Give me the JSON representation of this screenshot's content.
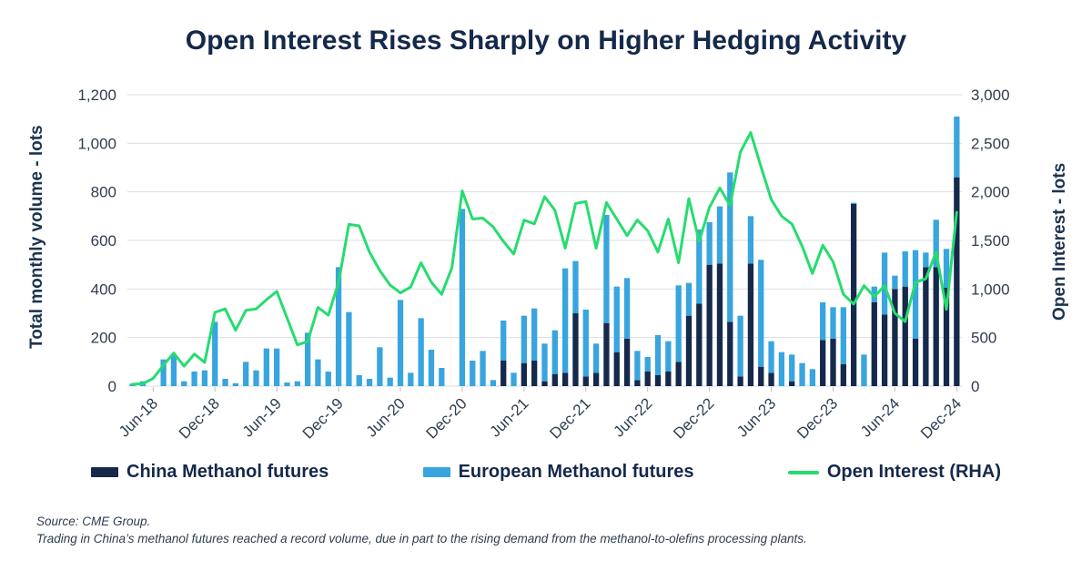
{
  "title": "Open Interest Rises Sharply on Higher Hedging Activity",
  "y_left": {
    "label": "Total monthly volume - lots",
    "ticks": [
      "0",
      "200",
      "400",
      "600",
      "800",
      "1,000",
      "1,200"
    ]
  },
  "y_right": {
    "label": "Open Interest - lots",
    "ticks": [
      "0",
      "500",
      "1,000",
      "1,500",
      "2,000",
      "2,500",
      "3,000"
    ]
  },
  "legend": {
    "items": [
      {
        "label": "China Methanol futures",
        "type": "rect",
        "color": "#15294b"
      },
      {
        "label": "European Methanol futures",
        "type": "rect",
        "color": "#38a5df"
      },
      {
        "label": "Open Interest (RHA)",
        "type": "line",
        "color": "#26dc6f"
      }
    ]
  },
  "footer": {
    "source": "Source: CME Group.",
    "note": "Trading in China’s methanol futures reached a record volume, due in part to the rising demand from the methanol-to-olefins processing plants."
  },
  "colors": {
    "grid": "#dadee4",
    "axis_text": "#2d3e50",
    "tick_mark": "#b8bfc9"
  },
  "chart_data": {
    "type": "bar",
    "subtype": "stacked bars with secondary-axis line",
    "n_months": 81,
    "start": "Apr-2018",
    "end": "Dec-2024",
    "x_tick_indices": [
      2,
      8,
      14,
      20,
      26,
      32,
      38,
      44,
      50,
      56,
      62,
      68,
      74,
      80
    ],
    "x_tick_labels": [
      "Jun-18",
      "Dec-18",
      "Jun-19",
      "Dec-19",
      "Jun-20",
      "Dec-20",
      "Jun-21",
      "Dec-21",
      "Jun-22",
      "Dec-22",
      "Jun-23",
      "Dec-23",
      "Jun-24",
      "Dec-24"
    ],
    "ylim_left": [
      0,
      1200
    ],
    "ylim_right": [
      0,
      3000
    ],
    "grid": "horizontal",
    "legend_position": "bottom",
    "series": [
      {
        "name": "China Methanol futures",
        "axis": "left",
        "render": "bar-stack-bottom",
        "color": "#15294b",
        "values": [
          0,
          0,
          0,
          0,
          0,
          0,
          0,
          0,
          0,
          0,
          0,
          0,
          0,
          0,
          0,
          0,
          0,
          0,
          0,
          0,
          0,
          0,
          0,
          0,
          0,
          0,
          0,
          0,
          0,
          0,
          0,
          0,
          0,
          0,
          0,
          0,
          105,
          0,
          95,
          105,
          20,
          50,
          55,
          300,
          40,
          55,
          260,
          140,
          195,
          25,
          60,
          45,
          60,
          100,
          290,
          340,
          500,
          505,
          265,
          40,
          505,
          80,
          55,
          0,
          20,
          0,
          0,
          190,
          195,
          90,
          750,
          0,
          345,
          295,
          400,
          410,
          195,
          490,
          490,
          405,
          860
        ]
      },
      {
        "name": "European Methanol futures",
        "axis": "left",
        "render": "bar-stack-top",
        "color": "#38a5df",
        "values": [
          10,
          20,
          0,
          110,
          130,
          20,
          60,
          65,
          265,
          30,
          12,
          100,
          65,
          155,
          155,
          15,
          20,
          220,
          110,
          60,
          490,
          305,
          45,
          30,
          160,
          35,
          355,
          55,
          280,
          150,
          75,
          0,
          730,
          105,
          145,
          25,
          165,
          55,
          195,
          215,
          155,
          180,
          430,
          215,
          275,
          120,
          445,
          270,
          250,
          120,
          60,
          165,
          125,
          315,
          135,
          305,
          175,
          235,
          615,
          250,
          195,
          440,
          130,
          140,
          110,
          95,
          70,
          155,
          130,
          235,
          5,
          130,
          65,
          255,
          55,
          145,
          365,
          60,
          195,
          160,
          250
        ]
      },
      {
        "name": "Open Interest (RHA)",
        "axis": "right",
        "render": "line",
        "color": "#26dc6f",
        "values": [
          20,
          25,
          80,
          215,
          340,
          205,
          330,
          245,
          760,
          795,
          575,
          780,
          795,
          890,
          975,
          700,
          425,
          460,
          810,
          730,
          1070,
          1665,
          1650,
          1380,
          1190,
          1040,
          960,
          1020,
          1270,
          1070,
          945,
          1220,
          2010,
          1720,
          1730,
          1640,
          1490,
          1360,
          1710,
          1670,
          1950,
          1810,
          1420,
          1880,
          1900,
          1420,
          1890,
          1720,
          1550,
          1710,
          1600,
          1380,
          1720,
          1270,
          1930,
          1490,
          1840,
          2040,
          1860,
          2410,
          2610,
          2260,
          1920,
          1750,
          1670,
          1440,
          1160,
          1450,
          1280,
          945,
          845,
          1035,
          920,
          1035,
          750,
          665,
          1070,
          1105,
          1380,
          790,
          1790
        ]
      }
    ]
  }
}
